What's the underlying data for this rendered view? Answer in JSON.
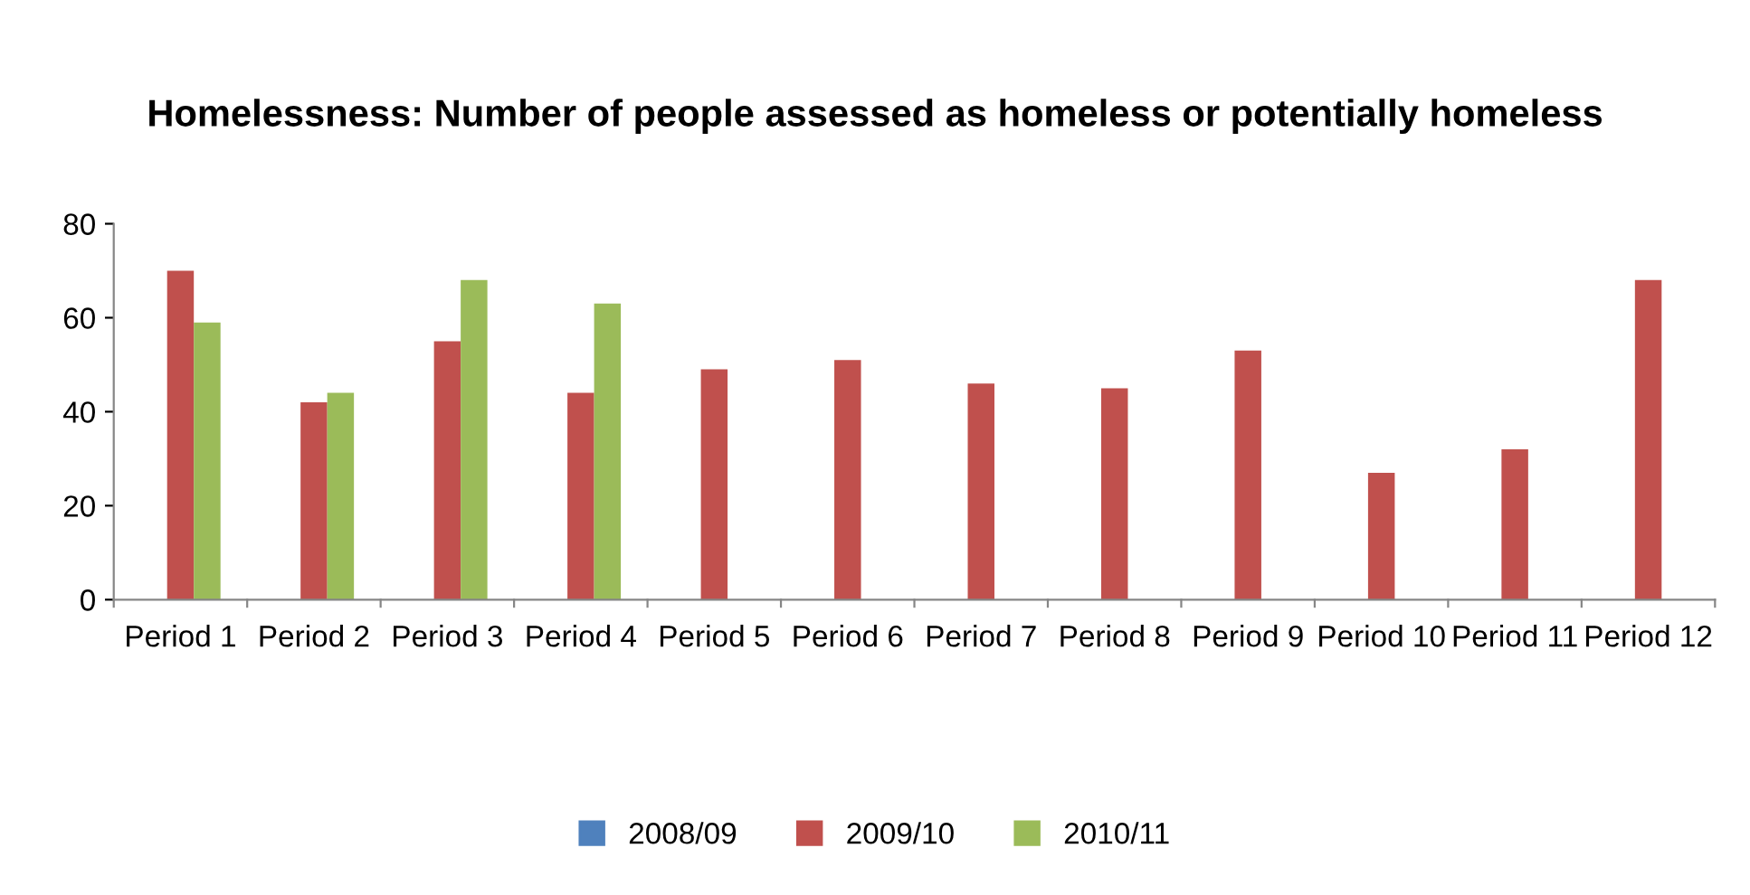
{
  "chart_data": {
    "type": "bar",
    "title": "Homelessness: Number of people assessed as homeless or potentially homeless",
    "categories": [
      "Period 1",
      "Period 2",
      "Period 3",
      "Period 4",
      "Period 5",
      "Period 6",
      "Period 7",
      "Period 8",
      "Period 9",
      "Period 10",
      "Period 11",
      "Period 12"
    ],
    "series": [
      {
        "name": "2008/09",
        "color": "#4f81bd",
        "values": [
          null,
          null,
          null,
          null,
          null,
          null,
          null,
          null,
          null,
          null,
          null,
          null
        ]
      },
      {
        "name": "2009/10",
        "color": "#c0504d",
        "values": [
          70,
          42,
          55,
          44,
          49,
          51,
          46,
          45,
          53,
          27,
          32,
          68
        ]
      },
      {
        "name": "2010/11",
        "color": "#9bbb59",
        "values": [
          59,
          44,
          68,
          63,
          null,
          null,
          null,
          null,
          null,
          null,
          null,
          null
        ]
      }
    ],
    "ylim": [
      0,
      80
    ],
    "yticks": [
      0,
      20,
      40,
      60,
      80
    ],
    "grid": false,
    "legend": "bottom"
  }
}
